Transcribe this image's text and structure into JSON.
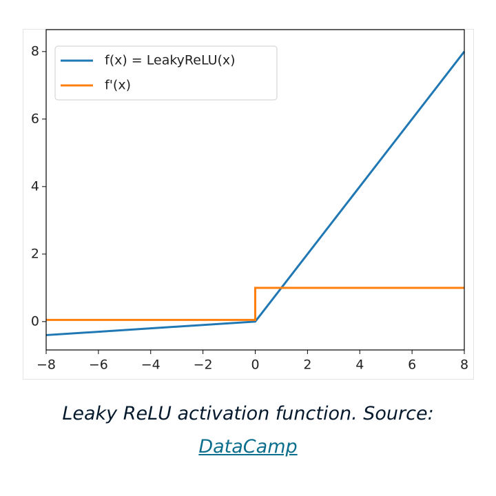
{
  "chart_data": {
    "type": "line",
    "x": [
      -8,
      0,
      0,
      8
    ],
    "series": [
      {
        "name": "f(x) = LeakyReLU(x)",
        "color": "#1f77b4",
        "values": [
          -0.4,
          0,
          0,
          8
        ]
      },
      {
        "name": "f'(x)",
        "color": "#ff7f0e",
        "values": [
          0.05,
          0.05,
          1,
          1
        ]
      }
    ],
    "xlim": [
      -8,
      8
    ],
    "xticks": [
      {
        "value": -8,
        "label": "−8"
      },
      {
        "value": -6,
        "label": "−6"
      },
      {
        "value": -4,
        "label": "−4"
      },
      {
        "value": -2,
        "label": "−2"
      },
      0,
      2,
      4,
      6,
      8
    ],
    "ylim": [
      -0.84,
      8.65
    ],
    "yticks": [
      0,
      2,
      4,
      6,
      8
    ],
    "legend": "upper left"
  },
  "caption": {
    "text": "Leaky ReLU activation function. Source:",
    "link": "DataCamp"
  }
}
